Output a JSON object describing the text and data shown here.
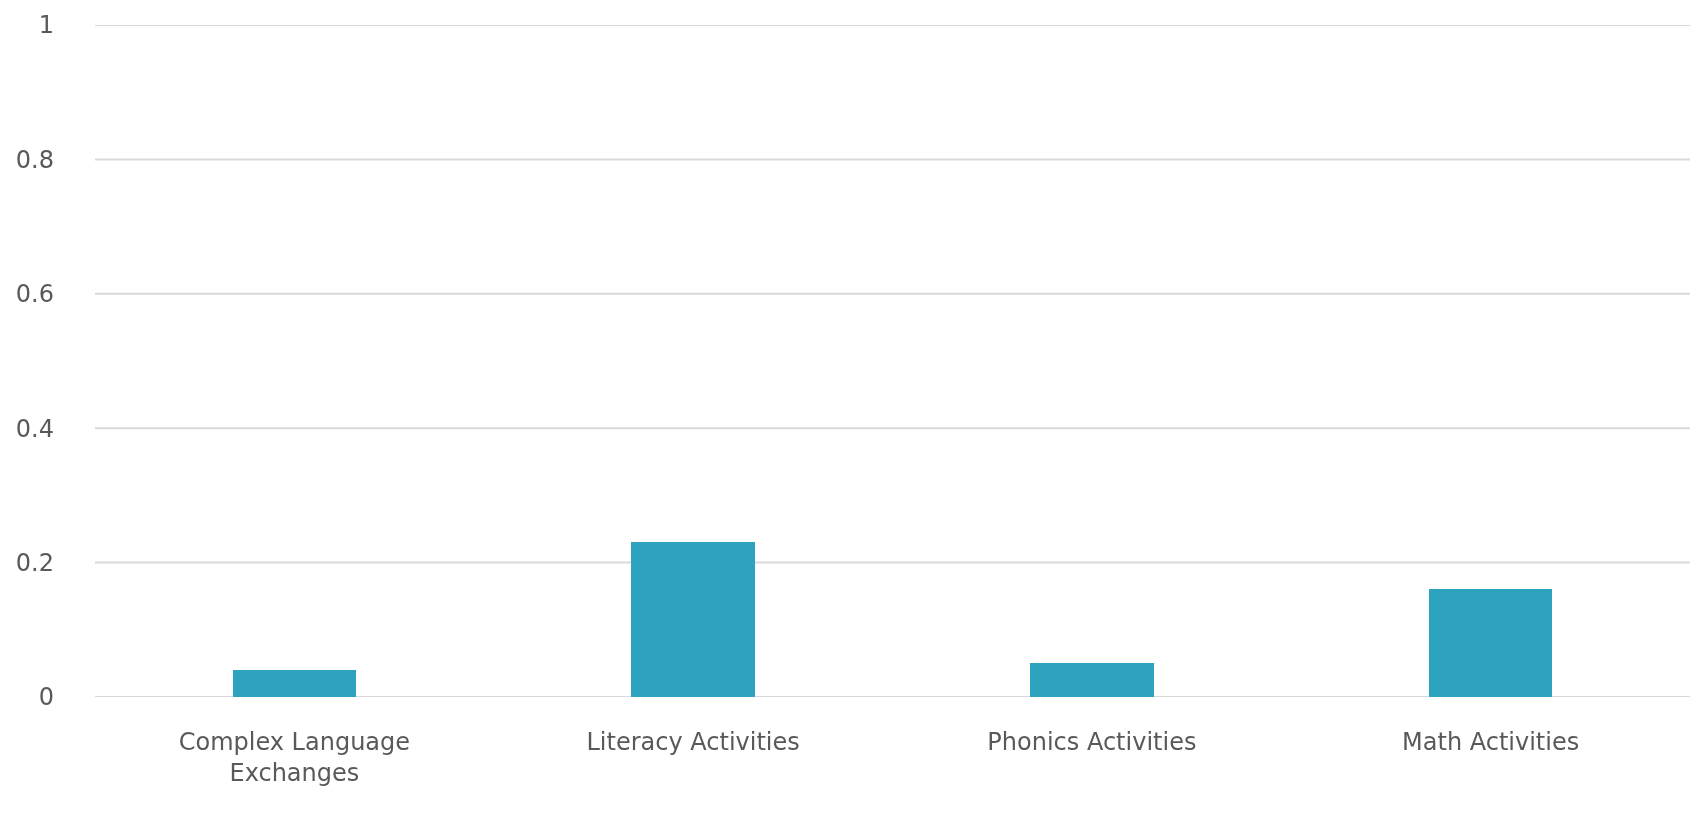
{
  "chart_data": {
    "type": "bar",
    "categories": [
      "Complex Language Exchanges",
      "Literacy Activities",
      "Phonics Activities",
      "Math Activities"
    ],
    "values": [
      0.04,
      0.23,
      0.05,
      0.16
    ],
    "color": "#2ea3bf",
    "ylim": [
      0,
      1
    ],
    "yticks": [
      0,
      0.2,
      0.4,
      0.6,
      0.8,
      1
    ],
    "grid": "y"
  }
}
